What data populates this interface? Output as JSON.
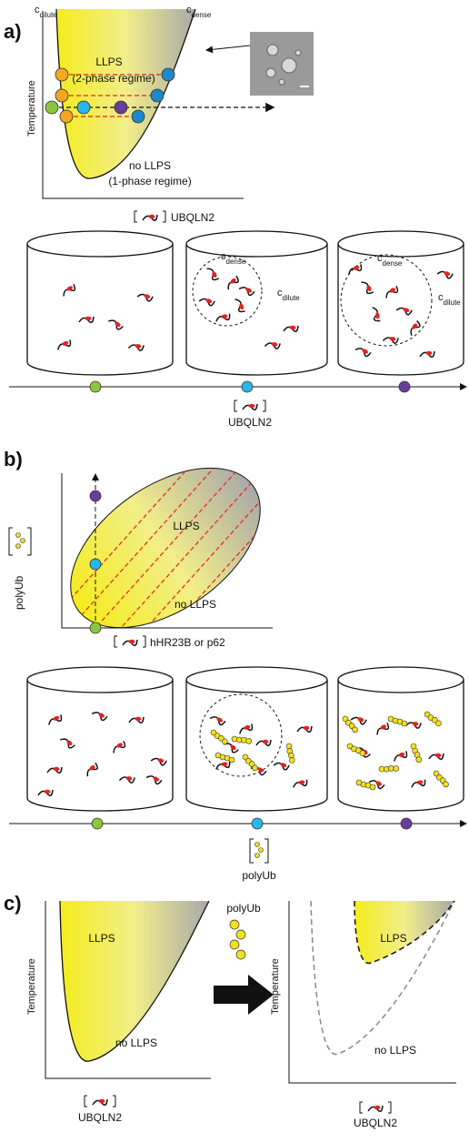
{
  "panel_a": {
    "label": "a)",
    "c_dilute": {
      "base": "c",
      "sub": "dilute"
    },
    "c_dense": {
      "base": "c",
      "sub": "dense"
    },
    "region_2phase": [
      "LLPS",
      "(2-phase regime)"
    ],
    "region_1phase": [
      "no LLPS",
      "(1-phase regime)"
    ],
    "y_axis": "Temperature",
    "x_axis": "UBQLN2",
    "cylinder_2_label": {
      "base": "c",
      "sub": "dense"
    },
    "cylinder_2_dilute": {
      "base": "c",
      "sub": "dilute"
    },
    "cylinder_3_label": {
      "base": "c",
      "sub": "dense"
    },
    "cylinder_3_dilute": {
      "base": "c",
      "sub": "dilute"
    },
    "bottom_axis": "UBQLN2"
  },
  "panel_b": {
    "label": "b)",
    "region_llps": "LLPS",
    "region_no": "no LLPS",
    "y_axis": "polyUb",
    "x_axis": "hHR23B or p62",
    "bottom_axis": "polyUb"
  },
  "panel_c": {
    "label": "c)",
    "left": {
      "region_llps": "LLPS",
      "region_no": "no LLPS",
      "y_axis": "Temperature",
      "x_axis": "UBQLN2"
    },
    "arrow_label": "polyUb",
    "right": {
      "region_llps": "LLPS",
      "region_no": "no LLPS",
      "y_axis": "Temperature",
      "x_axis": "UBQLN2"
    }
  }
}
